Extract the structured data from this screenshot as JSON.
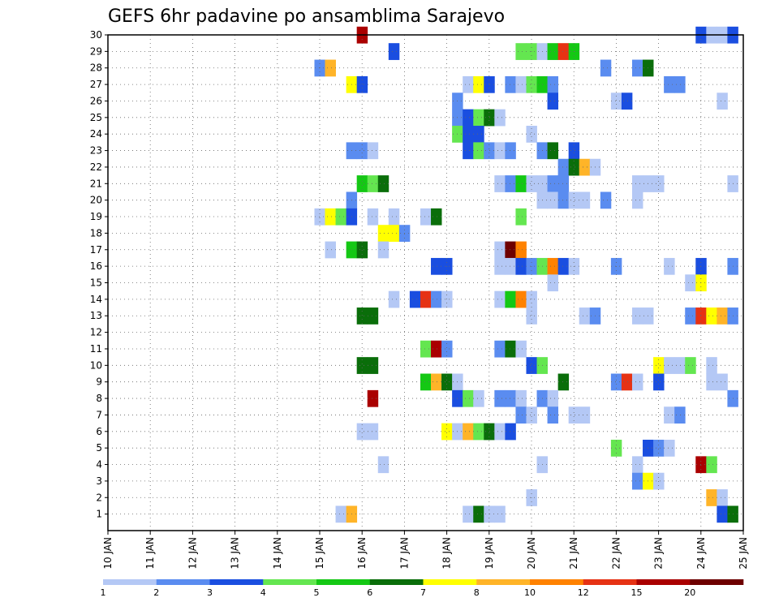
{
  "chart_data": {
    "type": "heatmap",
    "title": "GEFS 6hr padavine po ansamblima Sarajevo",
    "y_ticks": [
      "1",
      "2",
      "3",
      "4",
      "5",
      "6",
      "7",
      "8",
      "9",
      "10",
      "11",
      "12",
      "13",
      "14",
      "15",
      "16",
      "17",
      "18",
      "19",
      "20",
      "21",
      "22",
      "23",
      "24",
      "25",
      "26",
      "27",
      "28",
      "29",
      "30"
    ],
    "x_ticks": [
      "10 JAN",
      "11 JAN",
      "12 JAN",
      "13 JAN",
      "14 JAN",
      "15 JAN",
      "16 JAN",
      "17 JAN",
      "18 JAN",
      "19 JAN",
      "20 JAN",
      "21 JAN",
      "22 JAN",
      "23 JAN",
      "24 JAN",
      "25 JAN"
    ],
    "x_range_days": [
      10,
      25
    ],
    "y_range": [
      0,
      30
    ],
    "grid": "dotted",
    "legend_position": "bottom",
    "colorbar_labels": [
      "1",
      "2",
      "3",
      "4",
      "5",
      "6",
      "7",
      "8",
      "10",
      "12",
      "15",
      "20"
    ],
    "colorbar_colors": [
      "#b4c8f5",
      "#5a8cf0",
      "#1a4ee0",
      "#64e650",
      "#14c814",
      "#0a6e0a",
      "#ffff00",
      "#ffb428",
      "#ff8200",
      "#e63214",
      "#aa0000",
      "#6e0000"
    ],
    "cells": [
      {
        "member": 30,
        "day": 16.0,
        "level": 10
      },
      {
        "member": 30,
        "day": 24.0,
        "level": 2
      },
      {
        "member": 30,
        "day": 24.25,
        "level": 0
      },
      {
        "member": 30,
        "day": 24.5,
        "level": 0
      },
      {
        "member": 30,
        "day": 24.75,
        "level": 2
      },
      {
        "member": 29,
        "day": 16.75,
        "level": 2
      },
      {
        "member": 29,
        "day": 19.75,
        "level": 3
      },
      {
        "member": 29,
        "day": 20.0,
        "level": 3
      },
      {
        "member": 29,
        "day": 20.25,
        "level": 0
      },
      {
        "member": 29,
        "day": 20.5,
        "level": 4
      },
      {
        "member": 29,
        "day": 20.75,
        "level": 9
      },
      {
        "member": 29,
        "day": 21.0,
        "level": 4
      },
      {
        "member": 28,
        "day": 15.0,
        "level": 1
      },
      {
        "member": 28,
        "day": 15.25,
        "level": 7
      },
      {
        "member": 28,
        "day": 21.75,
        "level": 1
      },
      {
        "member": 28,
        "day": 22.5,
        "level": 1
      },
      {
        "member": 28,
        "day": 22.75,
        "level": 5
      },
      {
        "member": 27,
        "day": 15.75,
        "level": 6
      },
      {
        "member": 27,
        "day": 16.0,
        "level": 2
      },
      {
        "member": 27,
        "day": 18.5,
        "level": 0
      },
      {
        "member": 27,
        "day": 18.75,
        "level": 6
      },
      {
        "member": 27,
        "day": 19.0,
        "level": 2
      },
      {
        "member": 27,
        "day": 19.5,
        "level": 1
      },
      {
        "member": 27,
        "day": 19.75,
        "level": 0
      },
      {
        "member": 27,
        "day": 20.0,
        "level": 3
      },
      {
        "member": 27,
        "day": 20.25,
        "level": 4
      },
      {
        "member": 27,
        "day": 20.5,
        "level": 1
      },
      {
        "member": 27,
        "day": 23.25,
        "level": 1
      },
      {
        "member": 27,
        "day": 23.5,
        "level": 1
      },
      {
        "member": 26,
        "day": 18.25,
        "level": 1
      },
      {
        "member": 26,
        "day": 20.5,
        "level": 2
      },
      {
        "member": 26,
        "day": 22.0,
        "level": 0
      },
      {
        "member": 26,
        "day": 22.25,
        "level": 2
      },
      {
        "member": 26,
        "day": 24.5,
        "level": 0
      },
      {
        "member": 25,
        "day": 18.25,
        "level": 1
      },
      {
        "member": 25,
        "day": 18.5,
        "level": 2
      },
      {
        "member": 25,
        "day": 18.75,
        "level": 3
      },
      {
        "member": 25,
        "day": 19.0,
        "level": 5
      },
      {
        "member": 25,
        "day": 19.25,
        "level": 0
      },
      {
        "member": 24,
        "day": 18.25,
        "level": 3
      },
      {
        "member": 24,
        "day": 18.5,
        "level": 2
      },
      {
        "member": 24,
        "day": 18.75,
        "level": 2
      },
      {
        "member": 24,
        "day": 20.0,
        "level": 0
      },
      {
        "member": 23,
        "day": 15.75,
        "level": 1
      },
      {
        "member": 23,
        "day": 16.0,
        "level": 1
      },
      {
        "member": 23,
        "day": 16.25,
        "level": 0
      },
      {
        "member": 23,
        "day": 18.5,
        "level": 2
      },
      {
        "member": 23,
        "day": 18.75,
        "level": 3
      },
      {
        "member": 23,
        "day": 19.0,
        "level": 1
      },
      {
        "member": 23,
        "day": 19.25,
        "level": 0
      },
      {
        "member": 23,
        "day": 19.5,
        "level": 1
      },
      {
        "member": 23,
        "day": 20.25,
        "level": 1
      },
      {
        "member": 23,
        "day": 20.5,
        "level": 5
      },
      {
        "member": 23,
        "day": 21.0,
        "level": 2
      },
      {
        "member": 22,
        "day": 20.75,
        "level": 1
      },
      {
        "member": 22,
        "day": 21.0,
        "level": 5
      },
      {
        "member": 22,
        "day": 21.25,
        "level": 7
      },
      {
        "member": 22,
        "day": 21.5,
        "level": 0
      },
      {
        "member": 21,
        "day": 16.0,
        "level": 4
      },
      {
        "member": 21,
        "day": 16.25,
        "level": 3
      },
      {
        "member": 21,
        "day": 16.5,
        "level": 5
      },
      {
        "member": 21,
        "day": 19.25,
        "level": 0
      },
      {
        "member": 21,
        "day": 19.5,
        "level": 1
      },
      {
        "member": 21,
        "day": 19.75,
        "level": 4
      },
      {
        "member": 21,
        "day": 20.0,
        "level": 0
      },
      {
        "member": 21,
        "day": 20.25,
        "level": 0
      },
      {
        "member": 21,
        "day": 20.5,
        "level": 1
      },
      {
        "member": 21,
        "day": 20.75,
        "level": 1
      },
      {
        "member": 21,
        "day": 22.5,
        "level": 0
      },
      {
        "member": 21,
        "day": 22.75,
        "level": 0
      },
      {
        "member": 21,
        "day": 23.0,
        "level": 0
      },
      {
        "member": 21,
        "day": 24.75,
        "level": 0
      },
      {
        "member": 20,
        "day": 15.75,
        "level": 1
      },
      {
        "member": 20,
        "day": 20.25,
        "level": 0
      },
      {
        "member": 20,
        "day": 20.5,
        "level": 0
      },
      {
        "member": 20,
        "day": 20.75,
        "level": 1
      },
      {
        "member": 20,
        "day": 21.0,
        "level": 0
      },
      {
        "member": 20,
        "day": 21.25,
        "level": 0
      },
      {
        "member": 20,
        "day": 21.75,
        "level": 1
      },
      {
        "member": 20,
        "day": 22.5,
        "level": 0
      },
      {
        "member": 19,
        "day": 15.0,
        "level": 0
      },
      {
        "member": 19,
        "day": 15.25,
        "level": 6
      },
      {
        "member": 19,
        "day": 15.5,
        "level": 3
      },
      {
        "member": 19,
        "day": 15.75,
        "level": 2
      },
      {
        "member": 19,
        "day": 16.25,
        "level": 0
      },
      {
        "member": 19,
        "day": 16.75,
        "level": 0
      },
      {
        "member": 19,
        "day": 17.5,
        "level": 0
      },
      {
        "member": 19,
        "day": 17.75,
        "level": 5
      },
      {
        "member": 19,
        "day": 19.75,
        "level": 3
      },
      {
        "member": 18,
        "day": 16.5,
        "level": 6
      },
      {
        "member": 18,
        "day": 16.75,
        "level": 6
      },
      {
        "member": 18,
        "day": 17.0,
        "level": 1
      },
      {
        "member": 17,
        "day": 15.25,
        "level": 0
      },
      {
        "member": 17,
        "day": 15.75,
        "level": 4
      },
      {
        "member": 17,
        "day": 16.0,
        "level": 5
      },
      {
        "member": 17,
        "day": 16.5,
        "level": 0
      },
      {
        "member": 17,
        "day": 19.25,
        "level": 0
      },
      {
        "member": 17,
        "day": 19.5,
        "level": 11
      },
      {
        "member": 17,
        "day": 19.75,
        "level": 8
      },
      {
        "member": 16,
        "day": 17.75,
        "level": 2
      },
      {
        "member": 16,
        "day": 18.0,
        "level": 2
      },
      {
        "member": 16,
        "day": 19.25,
        "level": 0
      },
      {
        "member": 16,
        "day": 19.5,
        "level": 0
      },
      {
        "member": 16,
        "day": 19.75,
        "level": 2
      },
      {
        "member": 16,
        "day": 20.0,
        "level": 1
      },
      {
        "member": 16,
        "day": 20.25,
        "level": 3
      },
      {
        "member": 16,
        "day": 20.5,
        "level": 8
      },
      {
        "member": 16,
        "day": 20.75,
        "level": 2
      },
      {
        "member": 16,
        "day": 21.0,
        "level": 0
      },
      {
        "member": 16,
        "day": 22.0,
        "level": 1
      },
      {
        "member": 16,
        "day": 23.25,
        "level": 0
      },
      {
        "member": 16,
        "day": 24.0,
        "level": 2
      },
      {
        "member": 16,
        "day": 24.75,
        "level": 1
      },
      {
        "member": 15,
        "day": 20.5,
        "level": 0
      },
      {
        "member": 15,
        "day": 23.75,
        "level": 0
      },
      {
        "member": 15,
        "day": 24.0,
        "level": 6
      },
      {
        "member": 14,
        "day": 16.75,
        "level": 0
      },
      {
        "member": 14,
        "day": 17.25,
        "level": 2
      },
      {
        "member": 14,
        "day": 17.5,
        "level": 9
      },
      {
        "member": 14,
        "day": 17.75,
        "level": 1
      },
      {
        "member": 14,
        "day": 18.0,
        "level": 0
      },
      {
        "member": 14,
        "day": 19.25,
        "level": 0
      },
      {
        "member": 14,
        "day": 19.5,
        "level": 4
      },
      {
        "member": 14,
        "day": 19.75,
        "level": 8
      },
      {
        "member": 14,
        "day": 20.0,
        "level": 0
      },
      {
        "member": 13,
        "day": 16.0,
        "level": 5
      },
      {
        "member": 13,
        "day": 16.25,
        "level": 5
      },
      {
        "member": 13,
        "day": 20.0,
        "level": 0
      },
      {
        "member": 13,
        "day": 21.25,
        "level": 0
      },
      {
        "member": 13,
        "day": 21.5,
        "level": 1
      },
      {
        "member": 13,
        "day": 22.5,
        "level": 0
      },
      {
        "member": 13,
        "day": 22.75,
        "level": 0
      },
      {
        "member": 13,
        "day": 23.75,
        "level": 1
      },
      {
        "member": 13,
        "day": 24.0,
        "level": 9
      },
      {
        "member": 13,
        "day": 24.25,
        "level": 6
      },
      {
        "member": 13,
        "day": 24.5,
        "level": 7
      },
      {
        "member": 13,
        "day": 24.75,
        "level": 1
      },
      {
        "member": 11,
        "day": 17.5,
        "level": 3
      },
      {
        "member": 11,
        "day": 17.75,
        "level": 10
      },
      {
        "member": 11,
        "day": 18.0,
        "level": 1
      },
      {
        "member": 11,
        "day": 19.25,
        "level": 1
      },
      {
        "member": 11,
        "day": 19.5,
        "level": 5
      },
      {
        "member": 11,
        "day": 19.75,
        "level": 0
      },
      {
        "member": 10,
        "day": 16.0,
        "level": 5
      },
      {
        "member": 10,
        "day": 16.25,
        "level": 5
      },
      {
        "member": 10,
        "day": 20.0,
        "level": 2
      },
      {
        "member": 10,
        "day": 20.25,
        "level": 3
      },
      {
        "member": 10,
        "day": 23.0,
        "level": 6
      },
      {
        "member": 10,
        "day": 23.25,
        "level": 0
      },
      {
        "member": 10,
        "day": 23.5,
        "level": 0
      },
      {
        "member": 10,
        "day": 23.75,
        "level": 3
      },
      {
        "member": 10,
        "day": 24.25,
        "level": 0
      },
      {
        "member": 9,
        "day": 17.5,
        "level": 4
      },
      {
        "member": 9,
        "day": 17.75,
        "level": 7
      },
      {
        "member": 9,
        "day": 18.0,
        "level": 5
      },
      {
        "member": 9,
        "day": 18.25,
        "level": 0
      },
      {
        "member": 9,
        "day": 20.75,
        "level": 5
      },
      {
        "member": 9,
        "day": 22.0,
        "level": 1
      },
      {
        "member": 9,
        "day": 22.25,
        "level": 9
      },
      {
        "member": 9,
        "day": 22.5,
        "level": 0
      },
      {
        "member": 9,
        "day": 23.0,
        "level": 2
      },
      {
        "member": 9,
        "day": 24.25,
        "level": 0
      },
      {
        "member": 9,
        "day": 24.5,
        "level": 0
      },
      {
        "member": 8,
        "day": 16.25,
        "level": 10
      },
      {
        "member": 8,
        "day": 18.25,
        "level": 2
      },
      {
        "member": 8,
        "day": 18.5,
        "level": 3
      },
      {
        "member": 8,
        "day": 18.75,
        "level": 0
      },
      {
        "member": 8,
        "day": 19.25,
        "level": 1
      },
      {
        "member": 8,
        "day": 19.5,
        "level": 1
      },
      {
        "member": 8,
        "day": 19.75,
        "level": 0
      },
      {
        "member": 8,
        "day": 20.25,
        "level": 1
      },
      {
        "member": 8,
        "day": 20.5,
        "level": 0
      },
      {
        "member": 8,
        "day": 24.75,
        "level": 1
      },
      {
        "member": 7,
        "day": 19.75,
        "level": 1
      },
      {
        "member": 7,
        "day": 20.0,
        "level": 0
      },
      {
        "member": 7,
        "day": 20.5,
        "level": 1
      },
      {
        "member": 7,
        "day": 21.0,
        "level": 0
      },
      {
        "member": 7,
        "day": 21.25,
        "level": 0
      },
      {
        "member": 7,
        "day": 23.25,
        "level": 0
      },
      {
        "member": 7,
        "day": 23.5,
        "level": 1
      },
      {
        "member": 6,
        "day": 16.0,
        "level": 0
      },
      {
        "member": 6,
        "day": 16.25,
        "level": 0
      },
      {
        "member": 6,
        "day": 18.0,
        "level": 6
      },
      {
        "member": 6,
        "day": 18.25,
        "level": 0
      },
      {
        "member": 6,
        "day": 18.5,
        "level": 7
      },
      {
        "member": 6,
        "day": 18.75,
        "level": 3
      },
      {
        "member": 6,
        "day": 19.0,
        "level": 5
      },
      {
        "member": 6,
        "day": 19.25,
        "level": 0
      },
      {
        "member": 6,
        "day": 19.5,
        "level": 2
      },
      {
        "member": 5,
        "day": 22.0,
        "level": 3
      },
      {
        "member": 5,
        "day": 22.75,
        "level": 2
      },
      {
        "member": 5,
        "day": 23.0,
        "level": 1
      },
      {
        "member": 5,
        "day": 23.25,
        "level": 0
      },
      {
        "member": 4,
        "day": 16.5,
        "level": 0
      },
      {
        "member": 4,
        "day": 20.25,
        "level": 0
      },
      {
        "member": 4,
        "day": 22.5,
        "level": 0
      },
      {
        "member": 4,
        "day": 24.0,
        "level": 10
      },
      {
        "member": 4,
        "day": 24.25,
        "level": 3
      },
      {
        "member": 3,
        "day": 22.5,
        "level": 1
      },
      {
        "member": 3,
        "day": 22.75,
        "level": 6
      },
      {
        "member": 3,
        "day": 23.0,
        "level": 0
      },
      {
        "member": 2,
        "day": 20.0,
        "level": 0
      },
      {
        "member": 2,
        "day": 24.25,
        "level": 7
      },
      {
        "member": 2,
        "day": 24.5,
        "level": 0
      },
      {
        "member": 1,
        "day": 15.5,
        "level": 0
      },
      {
        "member": 1,
        "day": 15.75,
        "level": 7
      },
      {
        "member": 1,
        "day": 18.5,
        "level": 0
      },
      {
        "member": 1,
        "day": 18.75,
        "level": 5
      },
      {
        "member": 1,
        "day": 19.0,
        "level": 0
      },
      {
        "member": 1,
        "day": 19.25,
        "level": 0
      },
      {
        "member": 1,
        "day": 24.5,
        "level": 2
      },
      {
        "member": 1,
        "day": 24.75,
        "level": 5
      }
    ]
  }
}
